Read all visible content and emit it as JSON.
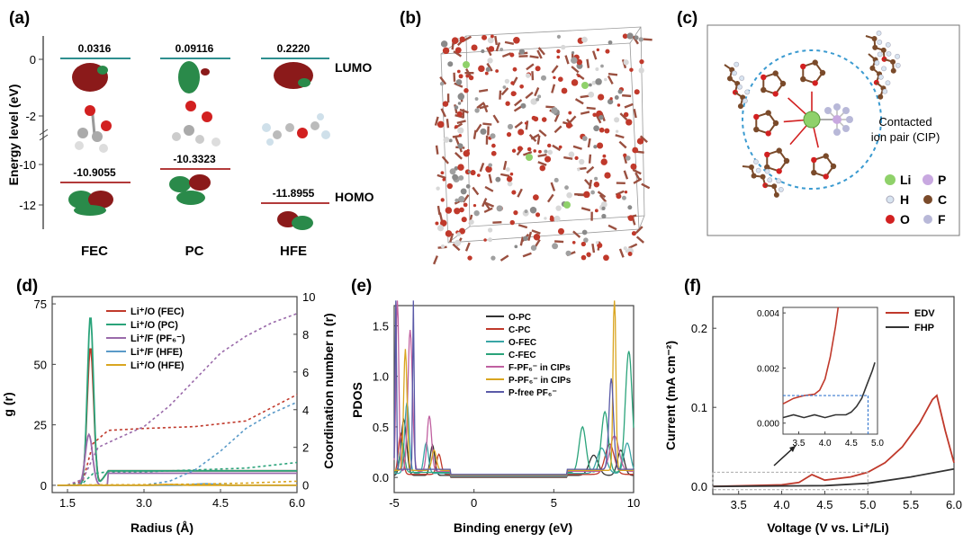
{
  "colors": {
    "red": "#c0392b",
    "green": "#2aa37a",
    "purple": "#8e6aa6",
    "teal": "#3aa6a6",
    "gold": "#d9a520",
    "navy": "#5a5aa8",
    "dark": "#333333",
    "box": "#888888",
    "homoRed": "#b23a3a",
    "lumoTeal": "#2f8f8f"
  },
  "panel_a": {
    "label": "(a)",
    "ylabel": "Energy level (eV)",
    "yticks": [
      "0",
      "-2",
      "-10",
      "-12"
    ],
    "lumo_label": "LUMO",
    "homo_label": "HOMO",
    "molecules": [
      {
        "name": "FEC",
        "lumo": "0.0316",
        "homo": "-10.9055"
      },
      {
        "name": "PC",
        "lumo": "0.09116",
        "homo": "-10.3323"
      },
      {
        "name": "HFE",
        "lumo": "0.2220",
        "homo": "-11.8955"
      }
    ]
  },
  "panel_b": {
    "label": "(b)"
  },
  "panel_c": {
    "label": "(c)",
    "cip_label_line1": "Contacted",
    "cip_label_line2": "ion pair (CIP)",
    "legend": [
      {
        "sym": "Li",
        "color": "#8fd16a"
      },
      {
        "sym": "P",
        "color": "#c8a8e0"
      },
      {
        "sym": "H",
        "color": "#d8e4f0"
      },
      {
        "sym": "C",
        "color": "#7a4a2a"
      },
      {
        "sym": "O",
        "color": "#d22020"
      },
      {
        "sym": "F",
        "color": "#b8b8d8"
      }
    ]
  },
  "chart_data": [
    {
      "panel": "(d)",
      "type": "line",
      "xlabel": "Radius (Å)",
      "ylabel": "g (r)",
      "y2label": "Coordination number n (r)",
      "xlim": [
        1.2,
        6.0
      ],
      "ylim": [
        -3,
        78
      ],
      "y2lim": [
        -0.4,
        10
      ],
      "xticks": [
        "1.5",
        "3.0",
        "4.5",
        "6.0"
      ],
      "yticks": [
        "0",
        "25",
        "50",
        "75"
      ],
      "y2ticks": [
        "0",
        "2",
        "4",
        "6",
        "8",
        "10"
      ],
      "series": [
        {
          "name": "Li⁺/O (FEC)",
          "color": "#c0392b",
          "peak": 57,
          "center": 1.95,
          "width": 0.09,
          "cn": [
            [
              1.5,
              0
            ],
            [
              1.8,
              0.2
            ],
            [
              2.0,
              2.2
            ],
            [
              2.3,
              2.9
            ],
            [
              3.0,
              3.0
            ],
            [
              4.0,
              3.1
            ],
            [
              5.0,
              3.4
            ],
            [
              6.0,
              4.8
            ]
          ]
        },
        {
          "name": "Li⁺/O (PC)",
          "color": "#2aa37a",
          "peak": 70,
          "center": 1.95,
          "width": 0.085,
          "cn": [
            [
              1.5,
              0
            ],
            [
              1.8,
              0.1
            ],
            [
              2.0,
              0.6
            ],
            [
              2.3,
              0.7
            ],
            [
              3.0,
              0.7
            ],
            [
              4.0,
              0.8
            ],
            [
              5.0,
              0.9
            ],
            [
              6.0,
              1.2
            ]
          ]
        },
        {
          "name": "Li⁺/F (PF₆⁻)",
          "color": "#9a6aaa",
          "peak": 21,
          "center": 1.92,
          "width": 0.1,
          "cn": [
            [
              1.5,
              0
            ],
            [
              1.8,
              0.3
            ],
            [
              2.1,
              2.0
            ],
            [
              2.5,
              2.5
            ],
            [
              3.0,
              3.1
            ],
            [
              3.5,
              4.2
            ],
            [
              4.0,
              5.6
            ],
            [
              4.5,
              7.0
            ],
            [
              5.0,
              7.9
            ],
            [
              5.5,
              8.6
            ],
            [
              6.0,
              9.1
            ]
          ]
        },
        {
          "name": "Li⁺/F (HFE)",
          "color": "#5a9ac8",
          "peak": 0.6,
          "center": 4.2,
          "width": 0.3,
          "cn": [
            [
              1.5,
              0
            ],
            [
              3.0,
              0
            ],
            [
              3.5,
              0.2
            ],
            [
              4.0,
              0.8
            ],
            [
              4.5,
              1.8
            ],
            [
              5.0,
              3.0
            ],
            [
              5.5,
              3.8
            ],
            [
              6.0,
              4.4
            ]
          ]
        },
        {
          "name": "Li⁺/O (HFE)",
          "color": "#d9a520",
          "peak": 0.3,
          "center": 3.5,
          "width": 0.3,
          "cn": [
            [
              1.5,
              0
            ],
            [
              3.0,
              0.02
            ],
            [
              4.0,
              0.05
            ],
            [
              5.0,
              0.1
            ],
            [
              6.0,
              0.2
            ]
          ]
        }
      ]
    },
    {
      "panel": "(e)",
      "type": "line",
      "xlabel": "Binding energy (eV)",
      "ylabel": "PDOS",
      "xlim": [
        -5,
        10
      ],
      "ylim": [
        -0.15,
        1.7
      ],
      "xticks": [
        "-5",
        "0",
        "5",
        "10"
      ],
      "yticks": [
        "0.0",
        "0.5",
        "1.0",
        "1.5"
      ],
      "series": [
        {
          "name": "O-PC",
          "color": "#333333"
        },
        {
          "name": "C-PC",
          "color": "#c0392b"
        },
        {
          "name": "O-FEC",
          "color": "#3aa6a6"
        },
        {
          "name": "C-FEC",
          "color": "#2aa37a"
        },
        {
          "name": "F-PF₆⁻ in CIPs",
          "color": "#c060a0"
        },
        {
          "name": "P-PF₆⁻ in CIPs",
          "color": "#d9a520"
        },
        {
          "name": "P-free PF₆⁻",
          "color": "#5a5aa8"
        }
      ]
    },
    {
      "panel": "(f)",
      "type": "line",
      "xlabel": "Voltage (V vs. Li⁺/Li)",
      "ylabel": "Current (mA cm⁻²)",
      "xlim": [
        3.2,
        6.0
      ],
      "ylim": [
        -0.01,
        0.24
      ],
      "xticks": [
        "3.5",
        "4.0",
        "4.5",
        "5.0",
        "5.5",
        "6.0"
      ],
      "yticks": [
        "0.0",
        "0.1",
        "0.2"
      ],
      "series": [
        {
          "name": "EDV",
          "color": "#c0392b",
          "points": [
            [
              3.2,
              0
            ],
            [
              4.0,
              0.002
            ],
            [
              4.2,
              0.005
            ],
            [
              4.35,
              0.015
            ],
            [
              4.5,
              0.008
            ],
            [
              4.8,
              0.012
            ],
            [
              5.0,
              0.018
            ],
            [
              5.2,
              0.03
            ],
            [
              5.4,
              0.05
            ],
            [
              5.6,
              0.08
            ],
            [
              5.75,
              0.11
            ],
            [
              5.8,
              0.115
            ],
            [
              5.9,
              0.07
            ],
            [
              6.0,
              0.03
            ]
          ]
        },
        {
          "name": "FHP",
          "color": "#333333",
          "points": [
            [
              3.2,
              0
            ],
            [
              4.5,
              0.001
            ],
            [
              5.0,
              0.004
            ],
            [
              5.5,
              0.012
            ],
            [
              6.0,
              0.022
            ]
          ]
        }
      ],
      "inset": {
        "xlim": [
          3.2,
          5.0
        ],
        "ylim": [
          -0.0004,
          0.0042
        ],
        "xticks": [
          "3.5",
          "4.0",
          "4.5",
          "5.0"
        ],
        "yticks": [
          "0.000",
          "0.002",
          "0.004"
        ],
        "series": [
          {
            "name": "EDV",
            "points": [
              [
                3.2,
                0.0007
              ],
              [
                3.4,
                0.0009
              ],
              [
                3.6,
                0.001
              ],
              [
                3.8,
                0.00105
              ],
              [
                3.9,
                0.0012
              ],
              [
                4.0,
                0.0016
              ],
              [
                4.1,
                0.0024
              ],
              [
                4.2,
                0.0035
              ],
              [
                4.25,
                0.0042
              ]
            ]
          },
          {
            "name": "FHP",
            "points": [
              [
                3.2,
                0.0002
              ],
              [
                3.4,
                0.0003
              ],
              [
                3.6,
                0.0002
              ],
              [
                3.8,
                0.0003
              ],
              [
                4.0,
                0.0002
              ],
              [
                4.2,
                0.0003
              ],
              [
                4.4,
                0.0003
              ],
              [
                4.5,
                0.0004
              ],
              [
                4.6,
                0.0006
              ],
              [
                4.7,
                0.0009
              ],
              [
                4.8,
                0.0014
              ],
              [
                4.9,
                0.0019
              ],
              [
                4.95,
                0.0022
              ]
            ]
          }
        ],
        "threshold_y": 0.001,
        "threshold_x": 4.82
      }
    }
  ]
}
